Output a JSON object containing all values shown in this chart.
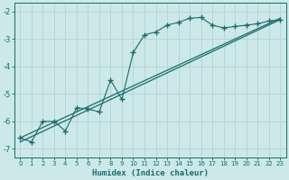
{
  "xlabel": "Humidex (Indice chaleur)",
  "xlim": [
    -0.5,
    23.5
  ],
  "ylim": [
    -7.3,
    -1.7
  ],
  "yticks": [
    -7,
    -6,
    -5,
    -4,
    -3,
    -2
  ],
  "xticks": [
    0,
    1,
    2,
    3,
    4,
    5,
    6,
    7,
    8,
    9,
    10,
    11,
    12,
    13,
    14,
    15,
    16,
    17,
    18,
    19,
    20,
    21,
    22,
    23
  ],
  "bg_color": "#cce8e8",
  "line_color": "#1a6b6b",
  "grid_color": "#b0d4d4",
  "line1_x": [
    0,
    1,
    2,
    3,
    4,
    5,
    6,
    7,
    8,
    9,
    10,
    11,
    12,
    13,
    14,
    15,
    16,
    17,
    18,
    19,
    20,
    21,
    22,
    23
  ],
  "line1_y": [
    -6.6,
    -6.75,
    -6.0,
    -6.0,
    -6.35,
    -5.5,
    -5.55,
    -5.65,
    -4.5,
    -5.2,
    -3.5,
    -2.85,
    -2.75,
    -2.5,
    -2.4,
    -2.25,
    -2.22,
    -2.5,
    -2.6,
    -2.55,
    -2.5,
    -2.45,
    -2.35,
    -2.3
  ],
  "line2_x": [
    0,
    23
  ],
  "line2_y": [
    -6.6,
    -2.25
  ],
  "line3_x": [
    0,
    23
  ],
  "line3_y": [
    -6.75,
    -2.3
  ]
}
